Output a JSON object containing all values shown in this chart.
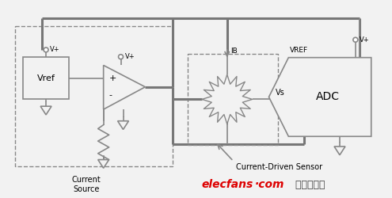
{
  "background_color": "#f2f2f2",
  "line_color": "#888888",
  "thick_color": "#777777",
  "text_color": "#000000",
  "watermark_red": "#dd0000",
  "watermark_gray": "#444444",
  "watermark1": "elecfans",
  "watermark_dot": ".",
  "watermark2": "com",
  "watermark3": " 电子发烧友",
  "caption": "Current-Driven Sensor",
  "lbl_current_source": "Current\nSource",
  "lbl_adc": "ADC",
  "lbl_vref_box": "Vref",
  "lbl_vref_adc": "VREF",
  "lbl_vs": "Vs",
  "lbl_vp1": "V+",
  "lbl_vp2": "V+",
  "lbl_vp3": "V+",
  "lbl_ib": "IB",
  "lbl_plus": "+",
  "lbl_minus": "-"
}
